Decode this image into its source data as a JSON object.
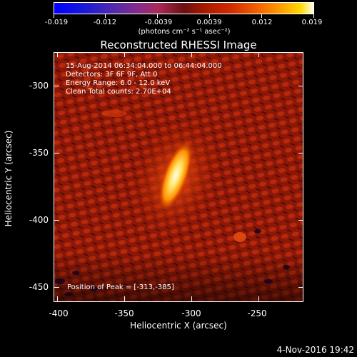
{
  "colorbar": {
    "ticks": [
      "-0.019",
      "-0.012",
      "-0.0039",
      "0.0039",
      "0.012",
      "0.019"
    ],
    "units": "(photons cm⁻² s⁻¹ asec⁻²)"
  },
  "title": "Reconstructed RHESSI Image",
  "info": {
    "time_range": "15-Aug-2014 06:34:04.000 to 06:44:04.000",
    "detectors": "Detectors: 3F 6F 9F, Att 0",
    "energy": "Energy Range: 6.0 - 12.0 keV",
    "method": "Clean     Total counts: 2.70E+04",
    "peak": "Position of Peak = [-313,-385]"
  },
  "axes": {
    "xlabel": "Heliocentric X (arcsec)",
    "ylabel": "Heliocentric Y (arcsec)",
    "xticks": [
      "-400",
      "-350",
      "-300",
      "-250"
    ],
    "yticks": [
      "-300",
      "-350",
      "-400",
      "-450"
    ]
  },
  "datestamp": "4-Nov-2016 19:42"
}
